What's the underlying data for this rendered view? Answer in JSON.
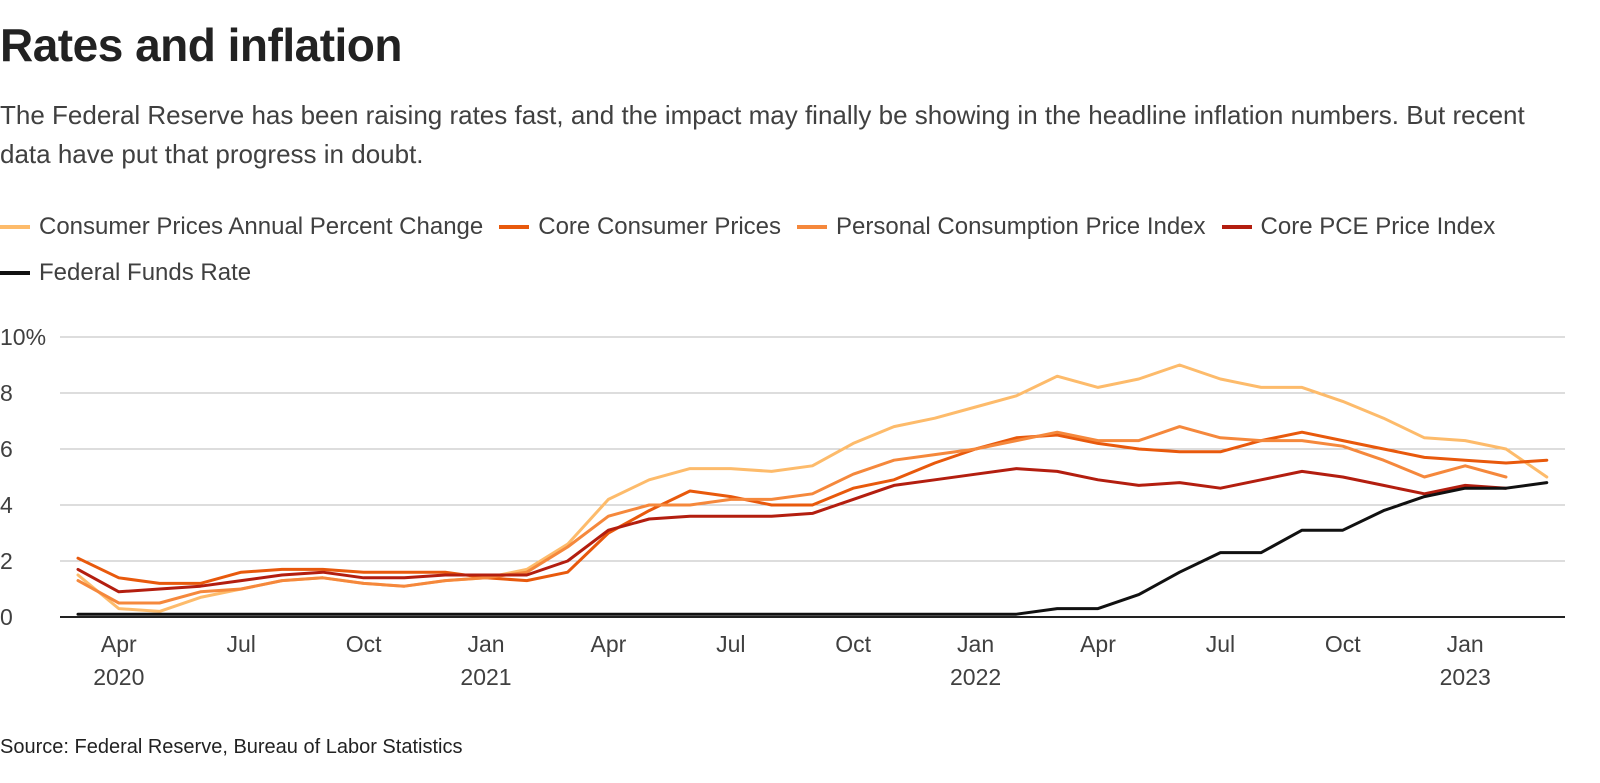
{
  "header": {
    "title": "Rates and inflation",
    "subtitle": "The Federal Reserve has been raising rates fast, and the impact may finally be showing in the headline inflation numbers. But recent data have put that progress in doubt."
  },
  "footer": {
    "source": "Source: Federal Reserve, Bureau of Labor Statistics"
  },
  "chart_data": {
    "type": "line",
    "title": "Rates and inflation",
    "xlabel": "",
    "ylabel": "",
    "ylim": [
      0,
      10
    ],
    "y_ticks": [
      {
        "value": 0,
        "label": "0"
      },
      {
        "value": 2,
        "label": "2"
      },
      {
        "value": 4,
        "label": "4"
      },
      {
        "value": 6,
        "label": "6"
      },
      {
        "value": 8,
        "label": "8"
      },
      {
        "value": 10,
        "label": "10%"
      }
    ],
    "x_ticks": [
      {
        "index": 1,
        "label": "Apr",
        "year": "2020"
      },
      {
        "index": 4,
        "label": "Jul",
        "year": ""
      },
      {
        "index": 7,
        "label": "Oct",
        "year": ""
      },
      {
        "index": 10,
        "label": "Jan",
        "year": "2021"
      },
      {
        "index": 13,
        "label": "Apr",
        "year": ""
      },
      {
        "index": 16,
        "label": "Jul",
        "year": ""
      },
      {
        "index": 19,
        "label": "Oct",
        "year": ""
      },
      {
        "index": 22,
        "label": "Jan",
        "year": "2022"
      },
      {
        "index": 25,
        "label": "Apr",
        "year": ""
      },
      {
        "index": 28,
        "label": "Jul",
        "year": ""
      },
      {
        "index": 31,
        "label": "Oct",
        "year": ""
      },
      {
        "index": 34,
        "label": "Jan",
        "year": "2023"
      }
    ],
    "x": [
      "2020-03",
      "2020-04",
      "2020-05",
      "2020-06",
      "2020-07",
      "2020-08",
      "2020-09",
      "2020-10",
      "2020-11",
      "2020-12",
      "2021-01",
      "2021-02",
      "2021-03",
      "2021-04",
      "2021-05",
      "2021-06",
      "2021-07",
      "2021-08",
      "2021-09",
      "2021-10",
      "2021-11",
      "2021-12",
      "2022-01",
      "2022-02",
      "2022-03",
      "2022-04",
      "2022-05",
      "2022-06",
      "2022-07",
      "2022-08",
      "2022-09",
      "2022-10",
      "2022-11",
      "2022-12",
      "2023-01",
      "2023-02",
      "2023-03"
    ],
    "grid": true,
    "legend_position": "top",
    "series": [
      {
        "name": "Consumer Prices Annual Percent Change",
        "color": "#fdbb6b",
        "values": [
          1.5,
          0.3,
          0.2,
          0.7,
          1.0,
          1.3,
          1.4,
          1.2,
          1.1,
          1.3,
          1.4,
          1.7,
          2.6,
          4.2,
          4.9,
          5.3,
          5.3,
          5.2,
          5.4,
          6.2,
          6.8,
          7.1,
          7.5,
          7.9,
          8.6,
          8.2,
          8.5,
          9.0,
          8.5,
          8.2,
          8.2,
          7.7,
          7.1,
          6.4,
          6.3,
          6.0,
          5.0
        ]
      },
      {
        "name": "Core Consumer Prices",
        "color": "#e8590c",
        "values": [
          2.1,
          1.4,
          1.2,
          1.2,
          1.6,
          1.7,
          1.7,
          1.6,
          1.6,
          1.6,
          1.4,
          1.3,
          1.6,
          3.0,
          3.8,
          4.5,
          4.3,
          4.0,
          4.0,
          4.6,
          4.9,
          5.5,
          6.0,
          6.4,
          6.5,
          6.2,
          6.0,
          5.9,
          5.9,
          6.3,
          6.6,
          6.3,
          6.0,
          5.7,
          5.6,
          5.5,
          5.6
        ]
      },
      {
        "name": "Personal Consumption Price Index",
        "color": "#f5883c",
        "values": [
          1.3,
          0.5,
          0.5,
          0.9,
          1.0,
          1.3,
          1.4,
          1.2,
          1.1,
          1.3,
          1.4,
          1.6,
          2.5,
          3.6,
          4.0,
          4.0,
          4.2,
          4.2,
          4.4,
          5.1,
          5.6,
          5.8,
          6.0,
          6.3,
          6.6,
          6.3,
          6.3,
          6.8,
          6.4,
          6.3,
          6.3,
          6.1,
          5.6,
          5.0,
          5.4,
          5.0,
          null
        ]
      },
      {
        "name": "Core PCE Price Index",
        "color": "#b31e0f",
        "values": [
          1.7,
          0.9,
          1.0,
          1.1,
          1.3,
          1.5,
          1.6,
          1.4,
          1.4,
          1.5,
          1.5,
          1.5,
          2.0,
          3.1,
          3.5,
          3.6,
          3.6,
          3.6,
          3.7,
          4.2,
          4.7,
          4.9,
          5.1,
          5.3,
          5.2,
          4.9,
          4.7,
          4.8,
          4.6,
          4.9,
          5.2,
          5.0,
          4.7,
          4.4,
          4.7,
          4.6,
          null
        ]
      },
      {
        "name": "Federal Funds Rate",
        "color": "#111111",
        "values": [
          0.1,
          0.1,
          0.1,
          0.1,
          0.1,
          0.1,
          0.1,
          0.1,
          0.1,
          0.1,
          0.1,
          0.1,
          0.1,
          0.1,
          0.1,
          0.1,
          0.1,
          0.1,
          0.1,
          0.1,
          0.1,
          0.1,
          0.1,
          0.1,
          0.3,
          0.3,
          0.8,
          1.6,
          2.3,
          2.3,
          3.1,
          3.1,
          3.8,
          4.3,
          4.6,
          4.6,
          4.8
        ]
      }
    ]
  }
}
